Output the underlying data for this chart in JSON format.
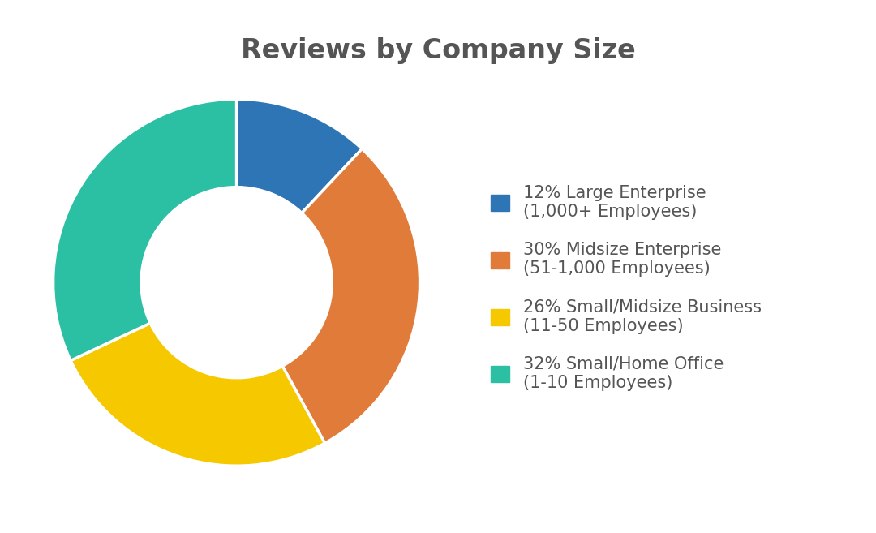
{
  "title": "Reviews by Company Size",
  "title_fontsize": 24,
  "title_color": "#555555",
  "title_fontweight": "bold",
  "slices": [
    12,
    30,
    26,
    32
  ],
  "colors": [
    "#2e75b6",
    "#e07b39",
    "#f5c800",
    "#2bbfa4"
  ],
  "startangle": 90,
  "legend_labels": [
    "12% Large Enterprise\n(1,000+ Employees)",
    "30% Midsize Enterprise\n(51-1,000 Employees)",
    "26% Small/Midsize Business\n(11-50 Employees)",
    "32% Small/Home Office\n(1-10 Employees)"
  ],
  "legend_fontsize": 15,
  "legend_text_color": "#555555",
  "background_color": "#ffffff",
  "donut_hole": 0.52
}
